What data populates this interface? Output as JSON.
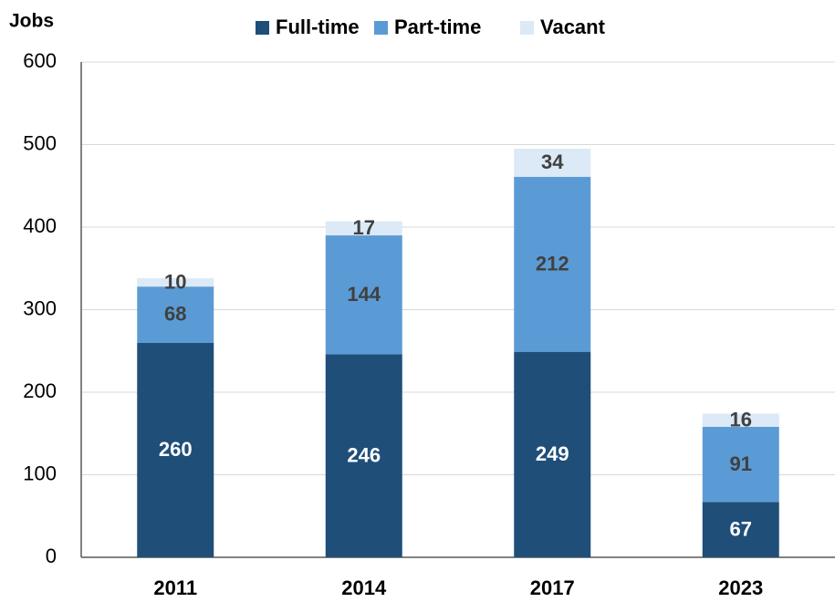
{
  "chart_data": {
    "type": "stacked_bar",
    "y_label": "Jobs",
    "categories": [
      "2011",
      "2014",
      "2017",
      "2023"
    ],
    "series": [
      {
        "name": "Full-time",
        "color": "#1f4e79",
        "values": [
          260,
          246,
          249,
          67
        ]
      },
      {
        "name": "Part-time",
        "color": "#5b9bd5",
        "values": [
          68,
          144,
          212,
          91
        ]
      },
      {
        "name": "Vacant",
        "color": "#dce9f6",
        "values": [
          10,
          17,
          34,
          16
        ]
      }
    ],
    "ylim": [
      0,
      600
    ],
    "yticks": [
      0,
      100,
      200,
      300,
      400,
      500,
      600
    ],
    "grid": true,
    "legend": "top"
  }
}
